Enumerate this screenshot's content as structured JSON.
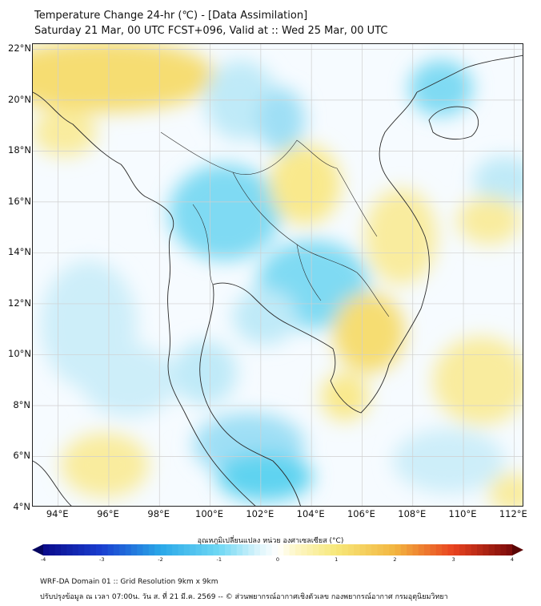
{
  "title": {
    "line1": "Temperature Change 24-hr (℃) - [Data Assimilation]",
    "line2": "Saturday 21 Mar, 00 UTC FCST+096, Valid at :: Wed 25 Mar, 00 UTC"
  },
  "map": {
    "lat_labels": [
      "22°N",
      "20°N",
      "18°N",
      "16°N",
      "14°N",
      "12°N",
      "10°N",
      "8°N",
      "6°N",
      "4°N"
    ],
    "lon_labels": [
      "94°E",
      "96°E",
      "98°E",
      "100°E",
      "102°E",
      "104°E",
      "106°E",
      "108°E",
      "110°E",
      "112°E"
    ],
    "lat_range": [
      4,
      22.2
    ],
    "lon_range": [
      93.0,
      112.4
    ],
    "colors": {
      "warm": "#f7e27a",
      "warm_light": "#fbf2b6",
      "cool": "#5fd3f0",
      "cool_light": "#bfeaf8",
      "coast": "#2a2a2a"
    }
  },
  "colorbar": {
    "title": "อุณหภูมิเปลี่ยนแปลง หน่วย องศาเซลเซียส (°C)",
    "ticks": [
      "-4",
      "-3",
      "-2",
      "-1",
      "0",
      "1",
      "2",
      "3",
      "4"
    ],
    "range": [
      -4,
      4
    ]
  },
  "footer": {
    "line1": "WRF-DA Domain 01 :: Grid Resolution 9km x 9km",
    "line2": "ปรับปรุงข้อมูล ณ เวลา 07:00น. วัน ส. ที่ 21 มี.ค. 2569 -- © ส่วนพยากรณ์อากาศเชิงตัวเลข กองพยากรณ์อากาศ กรมอุตุนิยมวิทยา"
  }
}
